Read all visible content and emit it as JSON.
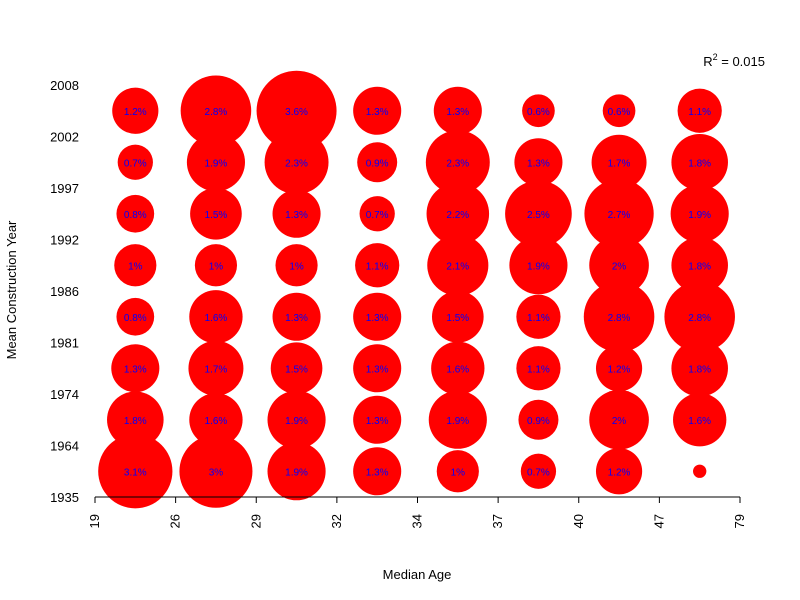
{
  "chart_data": {
    "type": "scatter",
    "subtype": "bubble-grid",
    "xlabel": "Median Age",
    "ylabel": "Mean Construction Year",
    "x_ticks": [
      "19",
      "26",
      "29",
      "32",
      "34",
      "37",
      "40",
      "47",
      "79"
    ],
    "y_ticks": [
      "1935",
      "1964",
      "1974",
      "1981",
      "1986",
      "1992",
      "1997",
      "2002",
      "2008"
    ],
    "annotation": {
      "prefix": "R",
      "sup": "2",
      "suffix": " = 0.015"
    },
    "colors": {
      "bubble": "#ff0000",
      "label": "#0000ff",
      "axis": "#000000"
    },
    "cells": [
      [
        {
          "v": 3.1,
          "label": "3.1%"
        },
        {
          "v": 1.8,
          "label": "1.8%"
        },
        {
          "v": 1.3,
          "label": "1.3%"
        },
        {
          "v": 0.8,
          "label": "0.8%"
        },
        {
          "v": 1.0,
          "label": "1%"
        },
        {
          "v": 0.8,
          "label": "0.8%"
        },
        {
          "v": 0.7,
          "label": "0.7%"
        },
        {
          "v": 1.2,
          "label": "1.2%"
        }
      ],
      [
        {
          "v": 3.0,
          "label": "3%"
        },
        {
          "v": 1.6,
          "label": "1.6%"
        },
        {
          "v": 1.7,
          "label": "1.7%"
        },
        {
          "v": 1.6,
          "label": "1.6%"
        },
        {
          "v": 1.0,
          "label": "1%"
        },
        {
          "v": 1.5,
          "label": "1.5%"
        },
        {
          "v": 1.9,
          "label": "1.9%"
        },
        {
          "v": 2.8,
          "label": "2.8%"
        }
      ],
      [
        {
          "v": 1.9,
          "label": "1.9%"
        },
        {
          "v": 1.9,
          "label": "1.9%"
        },
        {
          "v": 1.5,
          "label": "1.5%"
        },
        {
          "v": 1.3,
          "label": "1.3%"
        },
        {
          "v": 1.0,
          "label": "1%"
        },
        {
          "v": 1.3,
          "label": "1.3%"
        },
        {
          "v": 2.3,
          "label": "2.3%"
        },
        {
          "v": 3.6,
          "label": "3.6%"
        }
      ],
      [
        {
          "v": 1.3,
          "label": "1.3%"
        },
        {
          "v": 1.3,
          "label": "1.3%"
        },
        {
          "v": 1.3,
          "label": "1.3%"
        },
        {
          "v": 1.3,
          "label": "1.3%"
        },
        {
          "v": 1.1,
          "label": "1.1%"
        },
        {
          "v": 0.7,
          "label": "0.7%"
        },
        {
          "v": 0.9,
          "label": "0.9%"
        },
        {
          "v": 1.3,
          "label": "1.3%"
        }
      ],
      [
        {
          "v": 1.0,
          "label": "1%"
        },
        {
          "v": 1.9,
          "label": "1.9%"
        },
        {
          "v": 1.6,
          "label": "1.6%"
        },
        {
          "v": 1.5,
          "label": "1.5%"
        },
        {
          "v": 2.1,
          "label": "2.1%"
        },
        {
          "v": 2.2,
          "label": "2.2%"
        },
        {
          "v": 2.3,
          "label": "2.3%"
        },
        {
          "v": 1.3,
          "label": "1.3%"
        }
      ],
      [
        {
          "v": 0.7,
          "label": "0.7%"
        },
        {
          "v": 0.9,
          "label": "0.9%"
        },
        {
          "v": 1.1,
          "label": "1.1%"
        },
        {
          "v": 1.1,
          "label": "1.1%"
        },
        {
          "v": 1.9,
          "label": "1.9%"
        },
        {
          "v": 2.5,
          "label": "2.5%"
        },
        {
          "v": 1.3,
          "label": "1.3%"
        },
        {
          "v": 0.6,
          "label": "0.6%"
        }
      ],
      [
        {
          "v": 1.2,
          "label": "1.2%"
        },
        {
          "v": 2.0,
          "label": "2%"
        },
        {
          "v": 1.2,
          "label": "1.2%"
        },
        {
          "v": 2.8,
          "label": "2.8%"
        },
        {
          "v": 2.0,
          "label": "2%"
        },
        {
          "v": 2.7,
          "label": "2.7%"
        },
        {
          "v": 1.7,
          "label": "1.7%"
        },
        {
          "v": 0.6,
          "label": "0.6%"
        }
      ],
      [
        {
          "v": 0.1,
          "label": ""
        },
        {
          "v": 1.6,
          "label": "1.6%"
        },
        {
          "v": 1.8,
          "label": "1.8%"
        },
        {
          "v": 2.8,
          "label": "2.8%"
        },
        {
          "v": 1.8,
          "label": "1.8%"
        },
        {
          "v": 1.9,
          "label": "1.9%"
        },
        {
          "v": 1.8,
          "label": "1.8%"
        },
        {
          "v": 1.1,
          "label": "1.1%"
        }
      ]
    ]
  }
}
